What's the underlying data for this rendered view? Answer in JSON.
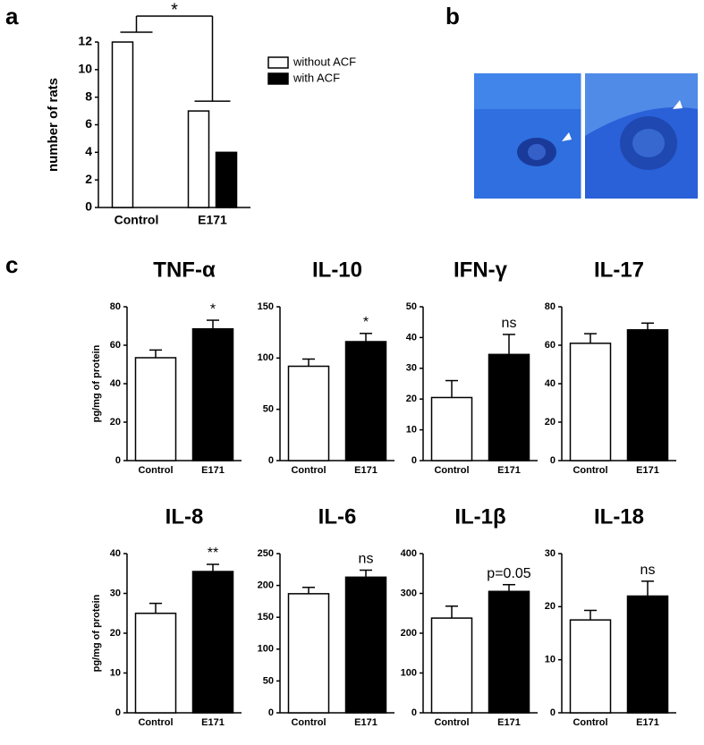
{
  "panel_labels": [
    "a",
    "b",
    "c"
  ],
  "chart_data": [
    {
      "type": "bar",
      "ylabel": "number of rats",
      "categories": [
        "Control",
        "E171"
      ],
      "series": [
        {
          "name": "without ACF",
          "color": "#ffffff",
          "values": [
            12,
            7
          ]
        },
        {
          "name": "with ACF",
          "color": "#000000",
          "values": [
            0,
            4
          ]
        }
      ],
      "ylim": [
        0,
        12
      ],
      "yticks": [
        0,
        2,
        4,
        6,
        8,
        10,
        12
      ],
      "annotation": "*",
      "legend": "right"
    },
    {
      "type": "bar",
      "title": "TNF-α",
      "ylabel": "pg/mg of protein",
      "categories": [
        "Control",
        "E171"
      ],
      "values": [
        53.5,
        68.5
      ],
      "errors": [
        4,
        4.5
      ],
      "colors": [
        "#ffffff",
        "#000000"
      ],
      "ylim": [
        0,
        80
      ],
      "yticks": [
        0,
        20,
        40,
        60,
        80
      ],
      "annotation": "*"
    },
    {
      "type": "bar",
      "title": "IL-10",
      "categories": [
        "Control",
        "E171"
      ],
      "values": [
        92,
        116
      ],
      "errors": [
        7,
        8
      ],
      "colors": [
        "#ffffff",
        "#000000"
      ],
      "ylim": [
        0,
        150
      ],
      "yticks": [
        0,
        50,
        100,
        150
      ],
      "annotation": "*"
    },
    {
      "type": "bar",
      "title": "IFN-γ",
      "categories": [
        "Control",
        "E171"
      ],
      "values": [
        20.5,
        34.5
      ],
      "errors": [
        5.5,
        6.5
      ],
      "colors": [
        "#ffffff",
        "#000000"
      ],
      "ylim": [
        0,
        50
      ],
      "yticks": [
        0,
        10,
        20,
        30,
        40,
        50
      ],
      "annotation": "ns"
    },
    {
      "type": "bar",
      "title": "IL-17",
      "categories": [
        "Control",
        "E171"
      ],
      "values": [
        61,
        68
      ],
      "errors": [
        5,
        3.5
      ],
      "colors": [
        "#ffffff",
        "#000000"
      ],
      "ylim": [
        0,
        80
      ],
      "yticks": [
        0,
        20,
        40,
        60,
        80
      ]
    },
    {
      "type": "bar",
      "title": "IL-8",
      "ylabel": "pg/mg of protein",
      "categories": [
        "Control",
        "E171"
      ],
      "values": [
        25,
        35.5
      ],
      "errors": [
        2.5,
        1.8
      ],
      "colors": [
        "#ffffff",
        "#000000"
      ],
      "ylim": [
        0,
        40
      ],
      "yticks": [
        0,
        10,
        20,
        30,
        40
      ],
      "annotation": "**"
    },
    {
      "type": "bar",
      "title": "IL-6",
      "categories": [
        "Control",
        "E171"
      ],
      "values": [
        187,
        213
      ],
      "errors": [
        10,
        11
      ],
      "colors": [
        "#ffffff",
        "#000000"
      ],
      "ylim": [
        0,
        250
      ],
      "yticks": [
        0,
        50,
        100,
        150,
        200,
        250
      ],
      "annotation": "ns"
    },
    {
      "type": "bar",
      "title": "IL-1β",
      "categories": [
        "Control",
        "E171"
      ],
      "values": [
        238,
        305
      ],
      "errors": [
        30,
        17
      ],
      "colors": [
        "#ffffff",
        "#000000"
      ],
      "ylim": [
        0,
        400
      ],
      "yticks": [
        0,
        100,
        200,
        300,
        400
      ],
      "annotation": "p=0.05"
    },
    {
      "type": "bar",
      "title": "IL-18",
      "categories": [
        "Control",
        "E171"
      ],
      "values": [
        17.5,
        22
      ],
      "errors": [
        1.8,
        2.8
      ],
      "colors": [
        "#ffffff",
        "#000000"
      ],
      "ylim": [
        0,
        30
      ],
      "yticks": [
        0,
        10,
        20,
        30
      ],
      "annotation": "ns"
    }
  ]
}
